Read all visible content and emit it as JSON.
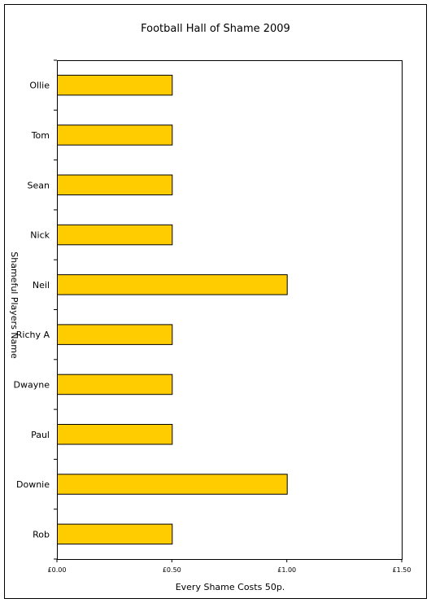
{
  "chart_data": {
    "type": "bar",
    "orientation": "horizontal",
    "title": "Football Hall of Shame 2009",
    "xlabel": "Every Shame Costs 50p.",
    "ylabel": "Shameful Players Name",
    "categories": [
      "Ollie",
      "Tom",
      "Sean",
      "Nick",
      "Neil",
      "Richy A",
      "Dwayne",
      "Paul",
      "Downie",
      "Rob"
    ],
    "values": [
      0.5,
      0.5,
      0.5,
      0.5,
      1.0,
      0.5,
      0.5,
      0.5,
      1.0,
      0.5
    ],
    "xlim": [
      0,
      1.5
    ],
    "xticks": [
      0,
      0.5,
      1.0,
      1.5
    ],
    "xtick_labels": [
      "£0.00",
      "£0.50",
      "£1.00",
      "£1.50"
    ],
    "grid": false,
    "bar_color": "#FFCC00"
  }
}
